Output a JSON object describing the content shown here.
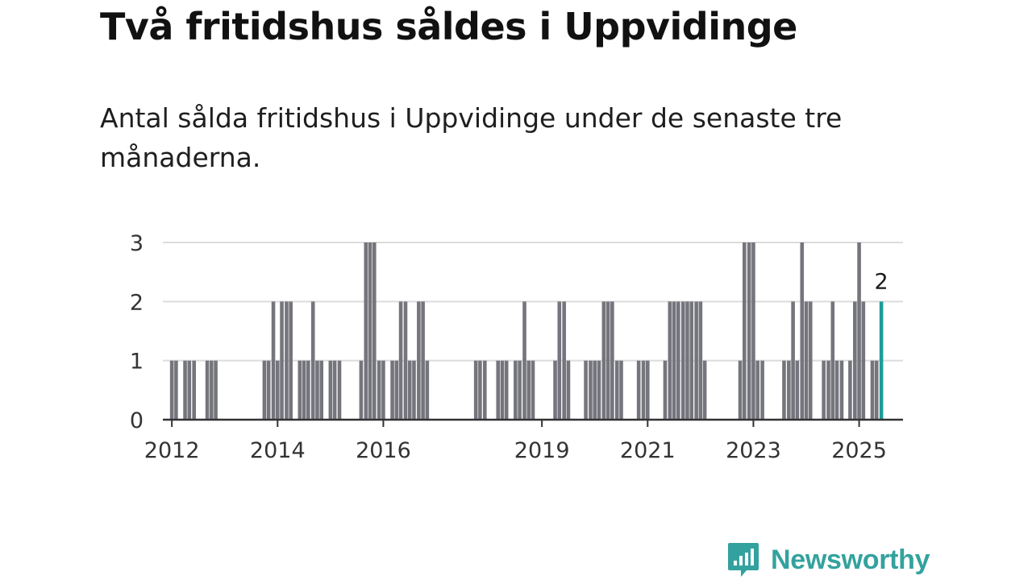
{
  "header": {
    "title": "Två fritidshus såldes i Uppvidinge",
    "subtitle": "Antal sålda fritidshus i Uppvidinge under de senaste tre månaderna."
  },
  "brand": {
    "name": "Newsworthy",
    "color": "#33a29e"
  },
  "colors": {
    "bar": "#75757d",
    "highlight": "#1f9c99",
    "grid": "#dcdcdc",
    "axis": "#333333"
  },
  "chart_data": {
    "type": "bar",
    "x_unit": "year",
    "ylim": [
      0,
      3
    ],
    "yticks": [
      0,
      1,
      2,
      3
    ],
    "xticks": [
      "2012",
      "2014",
      "2016",
      "2019",
      "2021",
      "2023",
      "2025"
    ],
    "grid": true,
    "highlight_label": "2",
    "bars": [
      {
        "x": 2012.0,
        "y": 1
      },
      {
        "x": 2012.08,
        "y": 1
      },
      {
        "x": 2012.25,
        "y": 1
      },
      {
        "x": 2012.33,
        "y": 1
      },
      {
        "x": 2012.42,
        "y": 1
      },
      {
        "x": 2012.67,
        "y": 1
      },
      {
        "x": 2012.75,
        "y": 1
      },
      {
        "x": 2012.83,
        "y": 1
      },
      {
        "x": 2013.75,
        "y": 1
      },
      {
        "x": 2013.83,
        "y": 1
      },
      {
        "x": 2013.92,
        "y": 2
      },
      {
        "x": 2014.0,
        "y": 1
      },
      {
        "x": 2014.08,
        "y": 2
      },
      {
        "x": 2014.17,
        "y": 2
      },
      {
        "x": 2014.25,
        "y": 2
      },
      {
        "x": 2014.42,
        "y": 1
      },
      {
        "x": 2014.5,
        "y": 1
      },
      {
        "x": 2014.58,
        "y": 1
      },
      {
        "x": 2014.67,
        "y": 2
      },
      {
        "x": 2014.75,
        "y": 1
      },
      {
        "x": 2014.83,
        "y": 1
      },
      {
        "x": 2015.0,
        "y": 1
      },
      {
        "x": 2015.08,
        "y": 1
      },
      {
        "x": 2015.17,
        "y": 1
      },
      {
        "x": 2015.58,
        "y": 1
      },
      {
        "x": 2015.67,
        "y": 3
      },
      {
        "x": 2015.75,
        "y": 3
      },
      {
        "x": 2015.83,
        "y": 3
      },
      {
        "x": 2015.92,
        "y": 1
      },
      {
        "x": 2016.0,
        "y": 1
      },
      {
        "x": 2016.17,
        "y": 1
      },
      {
        "x": 2016.25,
        "y": 1
      },
      {
        "x": 2016.33,
        "y": 2
      },
      {
        "x": 2016.42,
        "y": 2
      },
      {
        "x": 2016.5,
        "y": 1
      },
      {
        "x": 2016.58,
        "y": 1
      },
      {
        "x": 2016.67,
        "y": 2
      },
      {
        "x": 2016.75,
        "y": 2
      },
      {
        "x": 2016.83,
        "y": 1
      },
      {
        "x": 2017.75,
        "y": 1
      },
      {
        "x": 2017.83,
        "y": 1
      },
      {
        "x": 2017.92,
        "y": 1
      },
      {
        "x": 2018.17,
        "y": 1
      },
      {
        "x": 2018.25,
        "y": 1
      },
      {
        "x": 2018.33,
        "y": 1
      },
      {
        "x": 2018.5,
        "y": 1
      },
      {
        "x": 2018.58,
        "y": 1
      },
      {
        "x": 2018.67,
        "y": 2
      },
      {
        "x": 2018.75,
        "y": 1
      },
      {
        "x": 2018.83,
        "y": 1
      },
      {
        "x": 2019.25,
        "y": 1
      },
      {
        "x": 2019.33,
        "y": 2
      },
      {
        "x": 2019.42,
        "y": 2
      },
      {
        "x": 2019.5,
        "y": 1
      },
      {
        "x": 2019.83,
        "y": 1
      },
      {
        "x": 2019.92,
        "y": 1
      },
      {
        "x": 2020.0,
        "y": 1
      },
      {
        "x": 2020.08,
        "y": 1
      },
      {
        "x": 2020.17,
        "y": 2
      },
      {
        "x": 2020.25,
        "y": 2
      },
      {
        "x": 2020.33,
        "y": 2
      },
      {
        "x": 2020.42,
        "y": 1
      },
      {
        "x": 2020.5,
        "y": 1
      },
      {
        "x": 2020.83,
        "y": 1
      },
      {
        "x": 2020.92,
        "y": 1
      },
      {
        "x": 2021.0,
        "y": 1
      },
      {
        "x": 2021.33,
        "y": 1
      },
      {
        "x": 2021.42,
        "y": 2
      },
      {
        "x": 2021.5,
        "y": 2
      },
      {
        "x": 2021.58,
        "y": 2
      },
      {
        "x": 2021.67,
        "y": 2
      },
      {
        "x": 2021.75,
        "y": 2
      },
      {
        "x": 2021.83,
        "y": 2
      },
      {
        "x": 2021.92,
        "y": 2
      },
      {
        "x": 2022.0,
        "y": 2
      },
      {
        "x": 2022.08,
        "y": 1
      },
      {
        "x": 2022.75,
        "y": 1
      },
      {
        "x": 2022.83,
        "y": 3
      },
      {
        "x": 2022.92,
        "y": 3
      },
      {
        "x": 2023.0,
        "y": 3
      },
      {
        "x": 2023.08,
        "y": 1
      },
      {
        "x": 2023.17,
        "y": 1
      },
      {
        "x": 2023.58,
        "y": 1
      },
      {
        "x": 2023.67,
        "y": 1
      },
      {
        "x": 2023.75,
        "y": 2
      },
      {
        "x": 2023.83,
        "y": 1
      },
      {
        "x": 2023.92,
        "y": 3
      },
      {
        "x": 2024.0,
        "y": 2
      },
      {
        "x": 2024.08,
        "y": 2
      },
      {
        "x": 2024.33,
        "y": 1
      },
      {
        "x": 2024.42,
        "y": 1
      },
      {
        "x": 2024.5,
        "y": 2
      },
      {
        "x": 2024.58,
        "y": 1
      },
      {
        "x": 2024.67,
        "y": 1
      },
      {
        "x": 2024.83,
        "y": 1
      },
      {
        "x": 2024.92,
        "y": 2
      },
      {
        "x": 2025.0,
        "y": 3
      },
      {
        "x": 2025.08,
        "y": 2
      },
      {
        "x": 2025.25,
        "y": 1
      },
      {
        "x": 2025.33,
        "y": 1
      },
      {
        "x": 2025.42,
        "y": 2,
        "highlight": true
      }
    ]
  }
}
